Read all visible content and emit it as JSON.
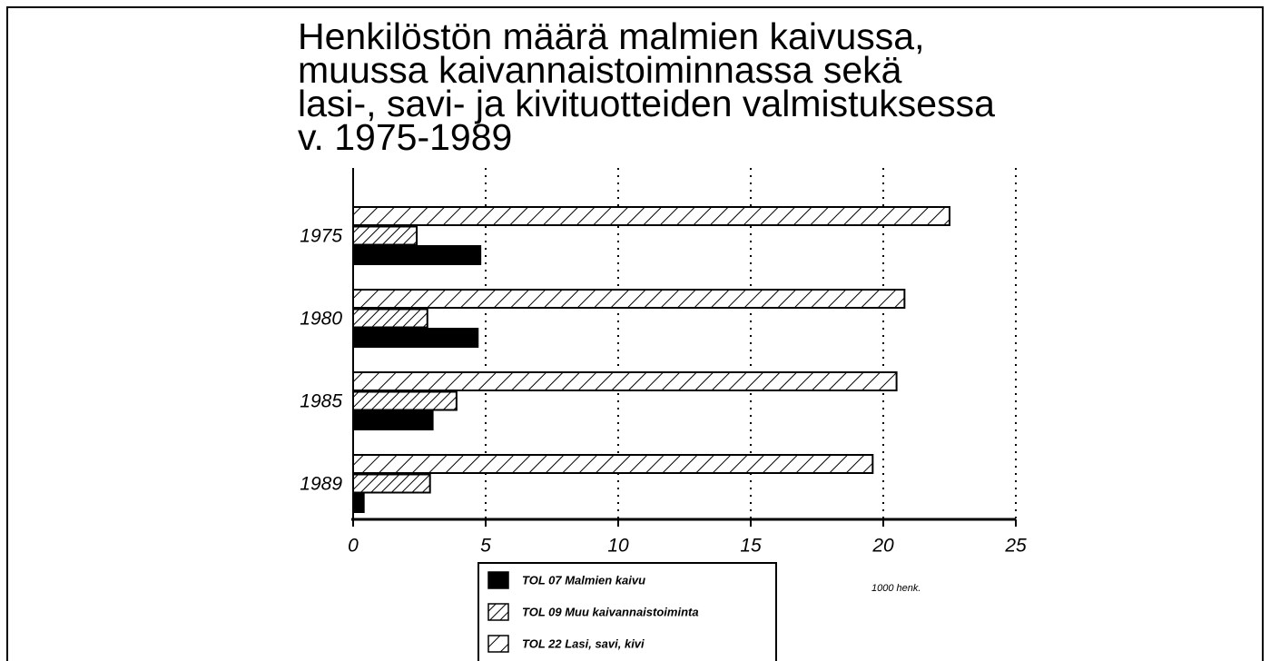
{
  "chart_data": {
    "type": "barh",
    "title": "Henkilöstön määrä malmien kaivussa,\nmuussa kaivannaistoiminnassa sekä\nlasi-, savi- ja kivituotteiden valmistuksessa\nv. 1975-1989",
    "categories": [
      "1975",
      "1980",
      "1985",
      "1989"
    ],
    "series": [
      {
        "name": "TOL 07 Malmien kaivu",
        "color": "#000000",
        "pattern": "solid",
        "values": [
          4.8,
          4.7,
          3.0,
          0.4
        ]
      },
      {
        "name": "TOL 09 Muu kaivannaistoiminta",
        "color": "#000000",
        "pattern": "hatch-dense",
        "values": [
          2.4,
          2.8,
          3.9,
          2.9
        ]
      },
      {
        "name": "TOL 22 Lasi, savi, kivi",
        "color": "#000000",
        "pattern": "hatch-sparse",
        "values": [
          22.5,
          20.8,
          20.5,
          19.6
        ]
      }
    ],
    "xlim": [
      0,
      25
    ],
    "xticks": [
      0,
      5,
      10,
      15,
      20,
      25
    ],
    "xlabel": "1000 henk.",
    "grid": true
  }
}
